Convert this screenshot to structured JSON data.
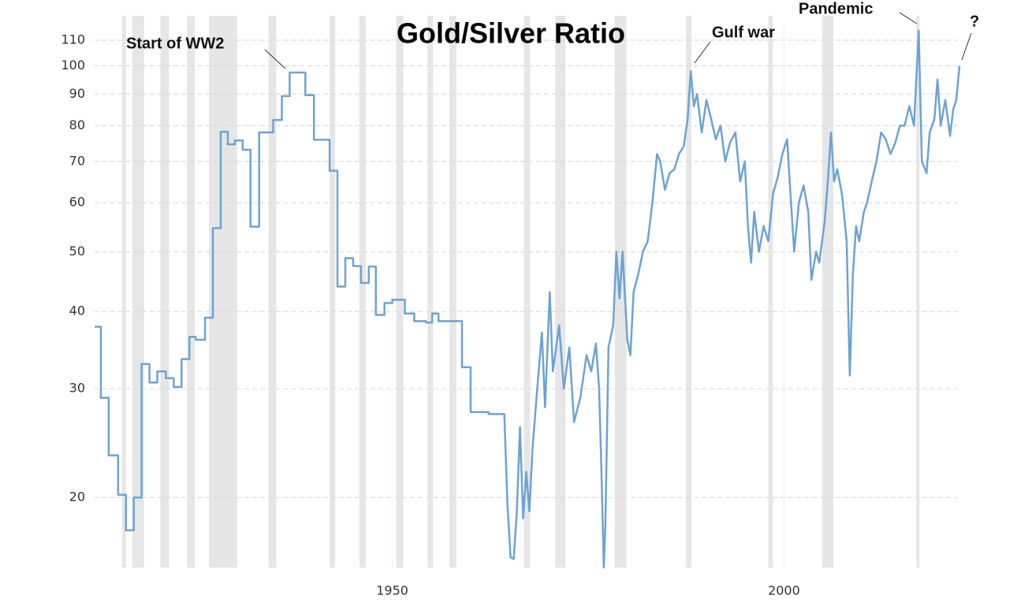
{
  "chart_data": {
    "type": "line",
    "title": "Gold/Silver Ratio",
    "annotations": [
      "Start of WW2",
      "Gulf war",
      "Pandemic",
      "?"
    ],
    "log_scale": true,
    "grid": true,
    "xlim": [
      1912,
      2022.5
    ],
    "xticks": [
      1950,
      2000
    ],
    "ylim": [
      15.4,
      117
    ],
    "yticks": [
      20,
      30,
      40,
      50,
      60,
      70,
      80,
      90,
      100,
      110
    ],
    "shaded_periods": [
      [
        1915.5,
        1916.0
      ],
      [
        1916.8,
        1918.3
      ],
      [
        1920.4,
        1921.5
      ],
      [
        1923.8,
        1924.8
      ],
      [
        1926.6,
        1930.2
      ],
      [
        1934.2,
        1935.2
      ],
      [
        1942.0,
        1942.7
      ],
      [
        1945.8,
        1946.6
      ],
      [
        1950.5,
        1951.4
      ],
      [
        1954.5,
        1955.2
      ],
      [
        1957.3,
        1958.2
      ],
      [
        1966.8,
        1967.6
      ],
      [
        1970.8,
        1972.1
      ],
      [
        1978.4,
        1979.9
      ],
      [
        1987.5,
        1988.2
      ],
      [
        1998.0,
        1998.6
      ],
      [
        2004.9,
        2006.3
      ],
      [
        2016.9,
        2017.3
      ]
    ],
    "shade_color": "#e6e6e6",
    "series": [
      {
        "color": "#6ca3d6",
        "x": [
          1912,
          1912.8,
          1912.8,
          1913.8,
          1913.8,
          1915,
          1915,
          1916,
          1916,
          1917,
          1917,
          1918,
          1918,
          1919,
          1919,
          1920,
          1920,
          1921.1,
          1921.1,
          1922.1,
          1922.1,
          1923.1,
          1923.1,
          1924.1,
          1924.1,
          1924.9,
          1924.9,
          1926.1,
          1926.1,
          1927.1,
          1927.1,
          1928.1,
          1928.1,
          1929,
          1929,
          1929.9,
          1929.9,
          1930.9,
          1930.9,
          1931.9,
          1931.9,
          1933,
          1933,
          1934.8,
          1934.8,
          1935.9,
          1935.9,
          1936.9,
          1936.9,
          1938.9,
          1938.9,
          1940,
          1940,
          1942,
          1942,
          1943,
          1943,
          1944,
          1944,
          1945,
          1945,
          1946,
          1946,
          1947,
          1947,
          1947.9,
          1947.9,
          1949,
          1949,
          1950,
          1950,
          1951.6,
          1951.6,
          1952.8,
          1952.8,
          1954.3,
          1954.3,
          1955.1,
          1955.1,
          1955.9,
          1955.9,
          1958.9,
          1958.9,
          1960,
          1960,
          1962.3,
          1962.3,
          1964.3,
          1964.7,
          1965.1,
          1965.5,
          1965.9,
          1966.3,
          1966.7,
          1967.1,
          1967.5,
          1967.9,
          1968.5,
          1969.1,
          1969.5,
          1970.1,
          1970.5,
          1971.3,
          1971.9,
          1972.6,
          1973.2,
          1974,
          1974.8,
          1975.4,
          1976,
          1976.4,
          1976.7,
          1977,
          1977.2,
          1977.6,
          1978.2,
          1978.6,
          1979,
          1979.4,
          1980,
          1980.4,
          1980.8,
          1981.4,
          1982,
          1982.6,
          1983.2,
          1983.8,
          1984.2,
          1984.8,
          1985.4,
          1986,
          1986.6,
          1987.2,
          1987.7,
          1988.1,
          1988.5,
          1988.9,
          1989.5,
          1990.1,
          1990.7,
          1991.3,
          1991.9,
          1992.5,
          1993.1,
          1993.8,
          1994.4,
          1995,
          1995.4,
          1995.8,
          1996.2,
          1996.8,
          1997.4,
          1998,
          1998.6,
          1999.2,
          1999.8,
          2000.4,
          2000.9,
          2001.3,
          2001.9,
          2002.5,
          2003.1,
          2003.5,
          2004.1,
          2004.5,
          2005.2,
          2005.6,
          2006,
          2006.4,
          2006.8,
          2007.4,
          2008,
          2008.4,
          2008.8,
          2009.2,
          2009.6,
          2010.2,
          2010.6,
          2011.2,
          2011.8,
          2012.4,
          2013,
          2013.6,
          2014.2,
          2014.8,
          2015.4,
          2016,
          2016.6,
          2017.2,
          2017.6,
          2018.2,
          2018.6,
          2019.2,
          2019.6,
          2020,
          2020.6,
          2021.2,
          2021.6,
          2022,
          2022.4
        ],
        "values": [
          37.8,
          37.8,
          29,
          29,
          23.4,
          23.4,
          20.2,
          20.2,
          17.7,
          17.7,
          20,
          20,
          32.9,
          32.9,
          30.7,
          30.7,
          32,
          32,
          31.2,
          31.2,
          30.2,
          30.2,
          33.5,
          33.5,
          36.4,
          36.4,
          36,
          36,
          39.1,
          39.1,
          54.6,
          54.6,
          78.2,
          78.2,
          74.6,
          74.6,
          75.7,
          75.7,
          73.1,
          73.1,
          54.9,
          54.9,
          78,
          78,
          81.7,
          81.7,
          89.3,
          89.3,
          97.5,
          97.5,
          89.6,
          89.6,
          75.9,
          75.9,
          67.6,
          67.6,
          43.9,
          43.9,
          48.8,
          48.8,
          47.4,
          47.4,
          44.5,
          44.5,
          47.3,
          47.3,
          39.5,
          39.5,
          41.3,
          41.3,
          41.8,
          41.8,
          39.7,
          39.7,
          38.6,
          38.6,
          38.4,
          38.4,
          39.7,
          39.7,
          38.6,
          38.6,
          32.5,
          32.5,
          27.5,
          27.5,
          27.3,
          27.3,
          19.5,
          16,
          15.9,
          19,
          26,
          18.5,
          22,
          19,
          24,
          30,
          37,
          28,
          43,
          32,
          38,
          30,
          35,
          26.5,
          29,
          34,
          32,
          35.5,
          30,
          22,
          15.4,
          18,
          35,
          38,
          50,
          42,
          50,
          36,
          34,
          43,
          46,
          50,
          52,
          60,
          72,
          70,
          63,
          67,
          68,
          72,
          74,
          82,
          98,
          86,
          90,
          78,
          88,
          82,
          76,
          80,
          70,
          75,
          78,
          65,
          70,
          55,
          48,
          58,
          50,
          55,
          52,
          62,
          66,
          72,
          76,
          60,
          50,
          60,
          64,
          58,
          45,
          50,
          48,
          56,
          65,
          78,
          65,
          68,
          62,
          52,
          31.5,
          46,
          55,
          52,
          58,
          60,
          65,
          70,
          78,
          76,
          72,
          75,
          80,
          80,
          86,
          80,
          114,
          70,
          67,
          78,
          82,
          95,
          80,
          88,
          77,
          85,
          88,
          100
        ]
      }
    ]
  }
}
